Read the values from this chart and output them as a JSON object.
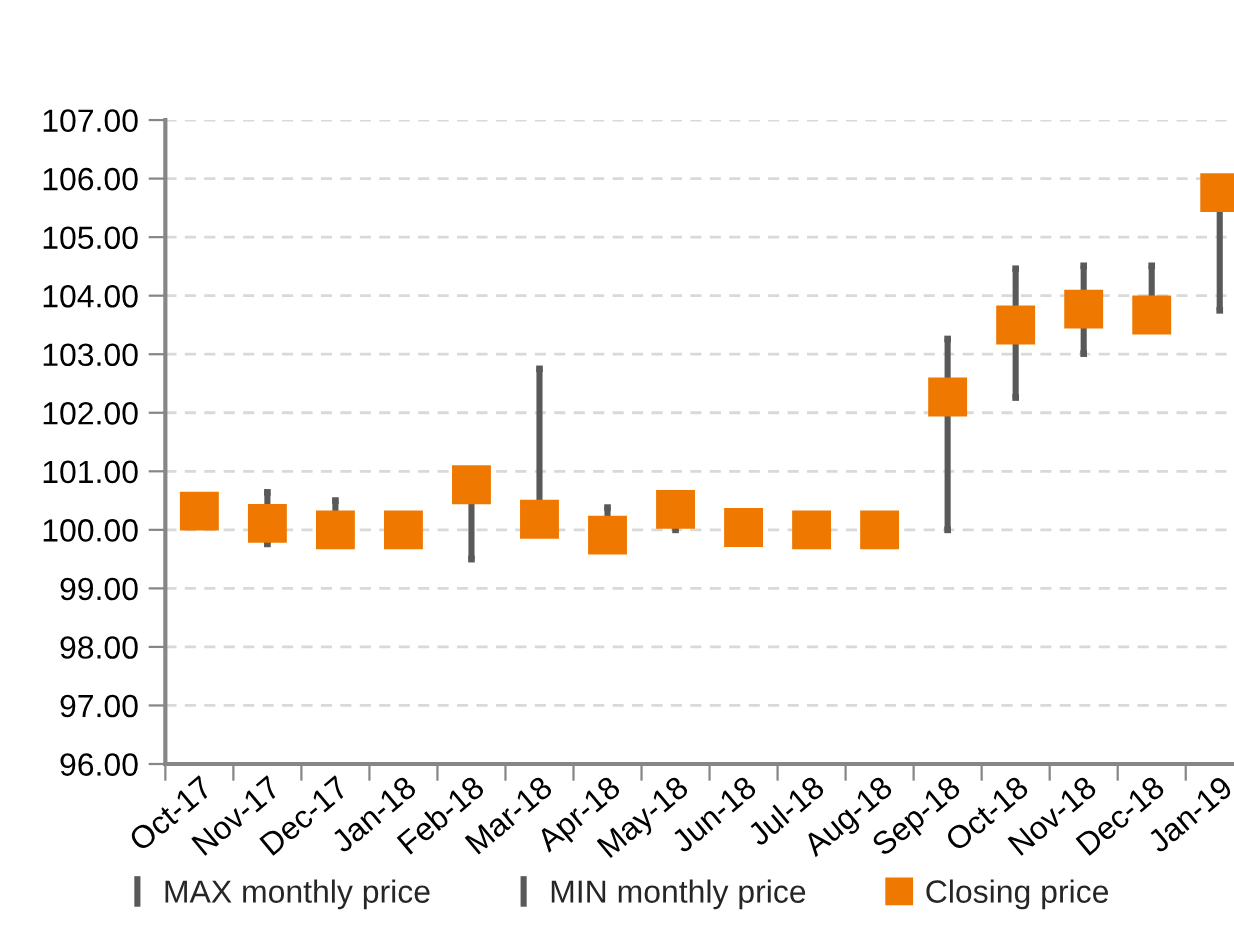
{
  "chart_data": {
    "type": "scatter",
    "categories": [
      "Oct-17",
      "Nov-17",
      "Dec-17",
      "Jan-18",
      "Feb-18",
      "Mar-18",
      "Apr-18",
      "May-18",
      "Jun-18",
      "Jul-18",
      "Aug-18",
      "Sep-18",
      "Oct-18",
      "Nov-18",
      "Dec-18",
      "Jan-19"
    ],
    "series": [
      {
        "name": "MAX monthly price",
        "color": "#595959",
        "values": [
          null,
          100.64,
          100.5,
          null,
          null,
          102.75,
          100.38,
          null,
          null,
          null,
          null,
          103.26,
          104.46,
          104.51,
          104.51,
          null
        ]
      },
      {
        "name": "MIN monthly price",
        "color": "#595959",
        "values": [
          null,
          99.76,
          null,
          null,
          99.5,
          null,
          null,
          100.0,
          null,
          null,
          null,
          100.0,
          102.26,
          103.01,
          null,
          103.75
        ]
      },
      {
        "name": "Closing price",
        "marker": "square",
        "color": "#ef7800",
        "values": [
          100.32,
          100.11,
          100.0,
          100.0,
          100.77,
          100.18,
          99.91,
          100.35,
          100.04,
          100.0,
          100.0,
          102.27,
          103.5,
          103.77,
          103.67,
          105.76
        ]
      }
    ],
    "ylim": [
      96,
      107
    ],
    "yticks": [
      {
        "value": 96,
        "label": "96.00"
      },
      {
        "value": 97,
        "label": "97.00"
      },
      {
        "value": 98,
        "label": "98.00"
      },
      {
        "value": 99,
        "label": "99.00"
      },
      {
        "value": 100,
        "label": "100.00"
      },
      {
        "value": 101,
        "label": "101.00"
      },
      {
        "value": 102,
        "label": "102.00"
      },
      {
        "value": 103,
        "label": "103.00"
      },
      {
        "value": 104,
        "label": "104.00"
      },
      {
        "value": 105,
        "label": "105.00"
      },
      {
        "value": 106,
        "label": "106.00"
      },
      {
        "value": 107,
        "label": "107.00"
      }
    ],
    "grid": "y",
    "legend": "bottom"
  }
}
